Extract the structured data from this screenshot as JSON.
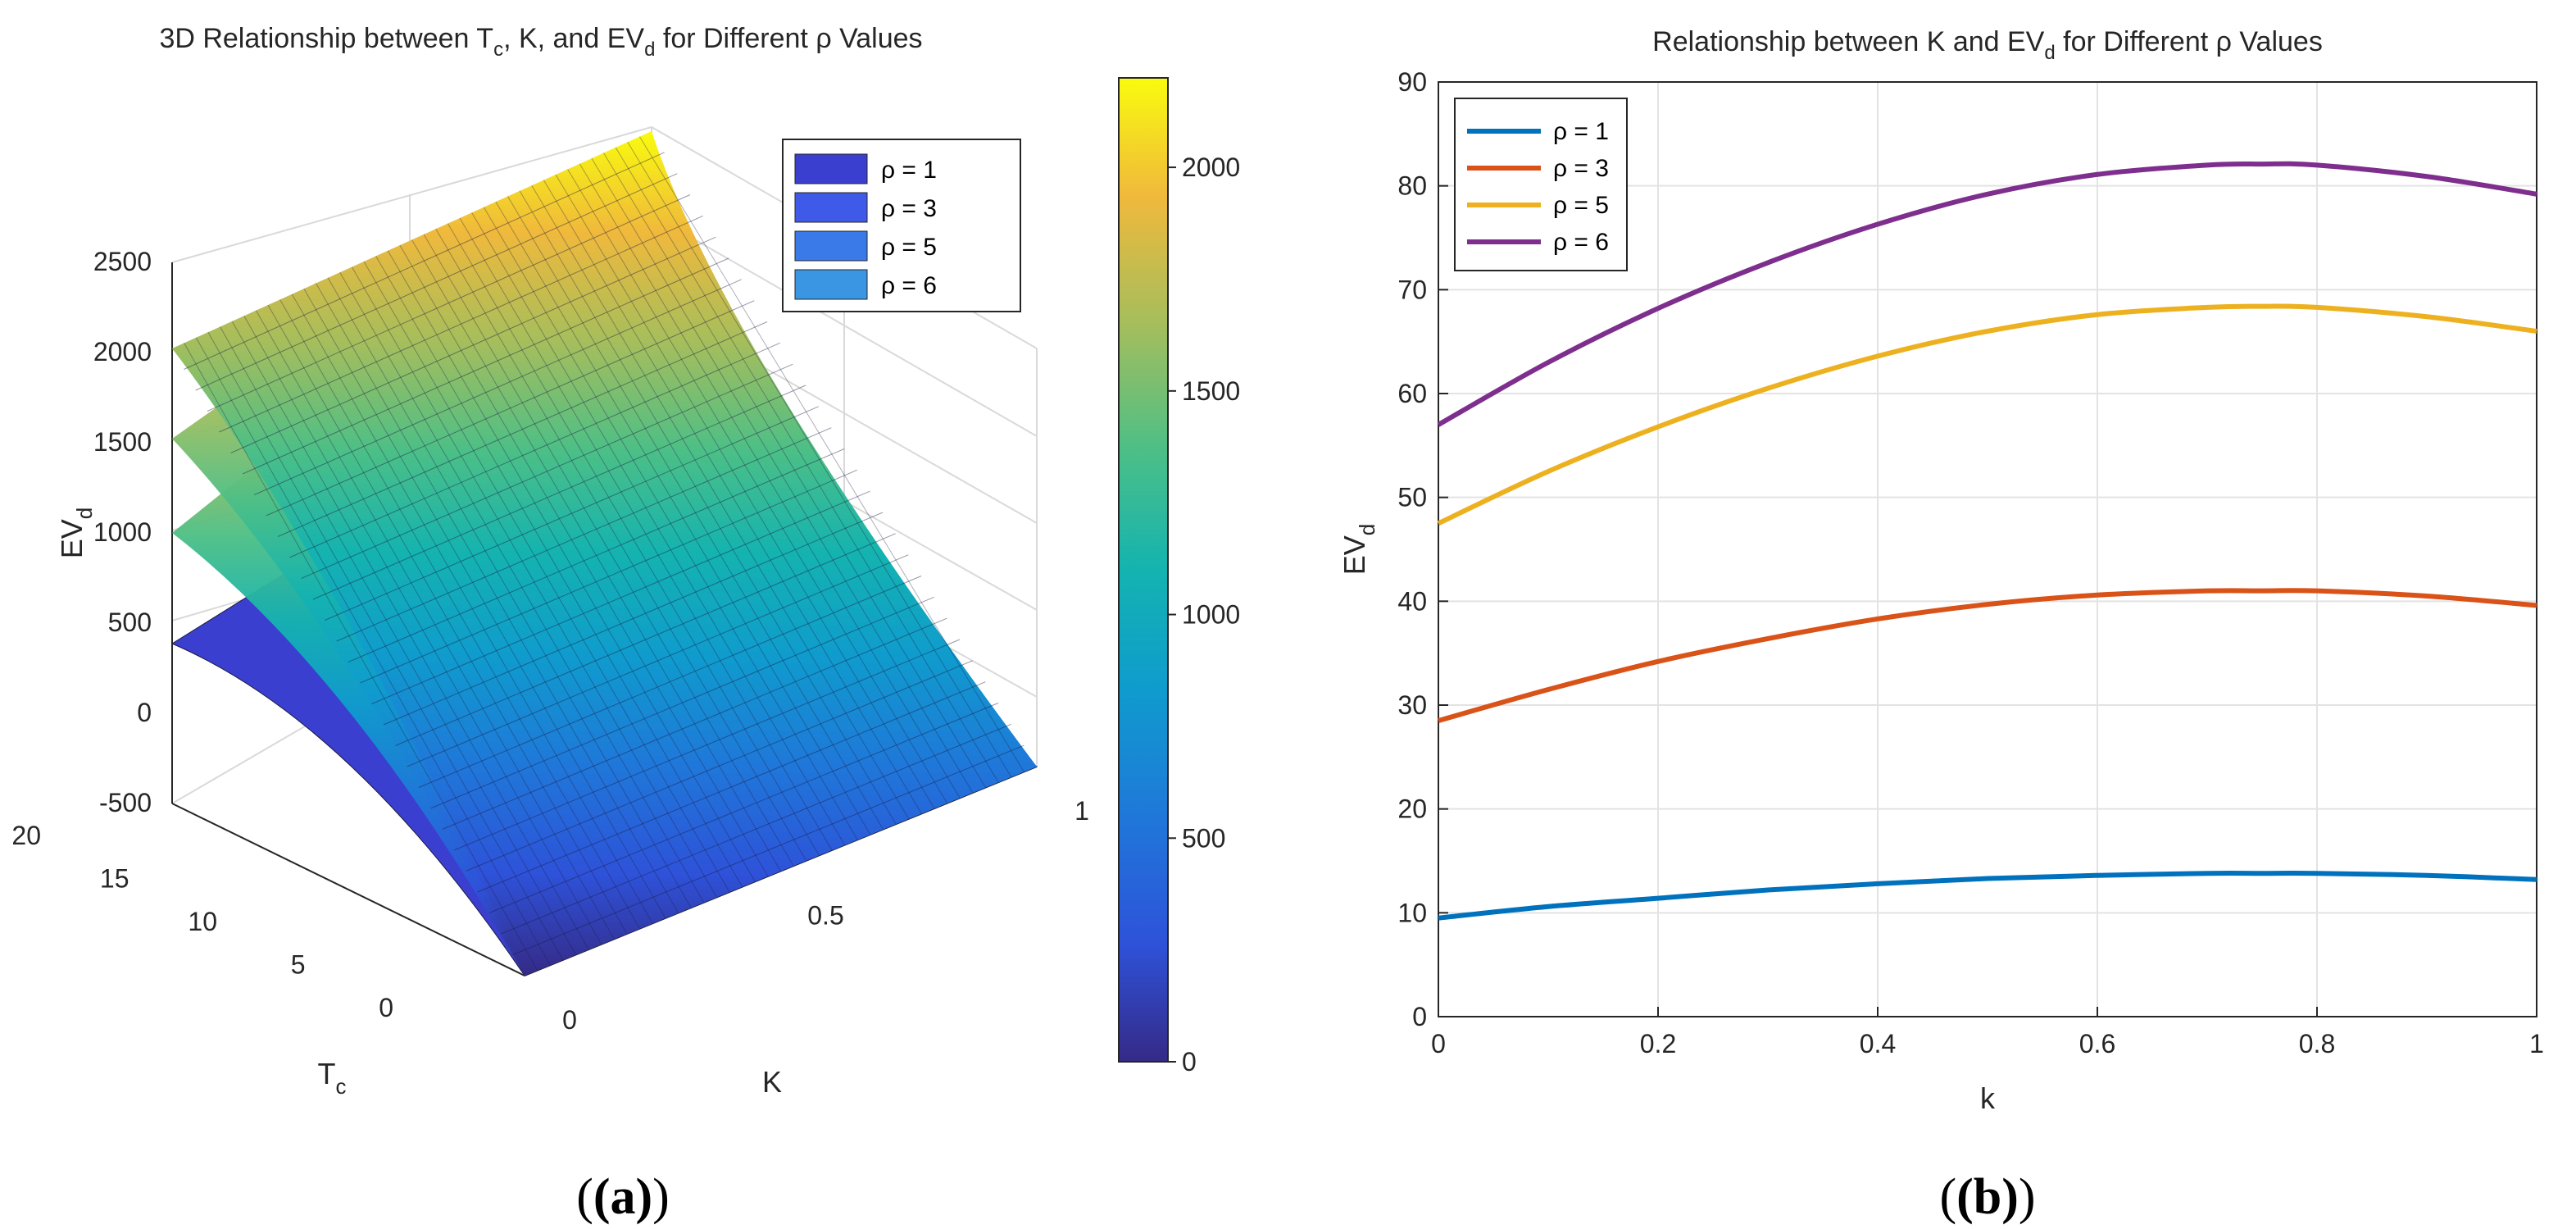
{
  "chart_data": [
    {
      "panel": "(a)",
      "type": "surface",
      "title": "3D Relationship between T_c, K, and EV_d for Different ρ Values",
      "title_parts": [
        "3D Relationship between T",
        "c",
        ", K, and EV",
        "d",
        " for Different ρ Values"
      ],
      "xlabel": "K",
      "ylabel_main": "T",
      "ylabel_sub": "c",
      "zlabel_main": "EV",
      "zlabel_sub": "d",
      "xlim": [
        0,
        1
      ],
      "ylim": [
        0,
        20
      ],
      "zlim": [
        -500,
        2500
      ],
      "x_ticks": [
        "0",
        "0.5",
        "1"
      ],
      "y_ticks": [
        "0",
        "5",
        "10",
        "15",
        "20"
      ],
      "z_ticks": [
        "-500",
        "0",
        "500",
        "1000",
        "1500",
        "2000",
        "2500"
      ],
      "series": [
        {
          "name": "ρ = 1",
          "rho": 1,
          "ev_at_K0_Tc20": 320
        },
        {
          "name": "ρ = 3",
          "rho": 3,
          "ev_at_K0_Tc20": 1000
        },
        {
          "name": "ρ = 5",
          "rho": 5,
          "ev_at_K0_Tc20": 1650
        },
        {
          "name": "ρ = 6",
          "rho": 6,
          "ev_at_K0_Tc20": 2000
        }
      ],
      "peak_value": 2200,
      "legend_location": "top-right",
      "legend_colors": [
        "#3a3fcf",
        "#3f5ae8",
        "#3a7ae8",
        "#3a96e3"
      ],
      "colorbar": {
        "ticks": [
          "0",
          "500",
          "1000",
          "1500",
          "2000"
        ],
        "range": [
          0,
          2200
        ]
      },
      "panel_label": "(a)"
    },
    {
      "panel": "(b)",
      "type": "line",
      "title": "Relationship between K and EV_d for Different ρ Values",
      "title_parts": [
        "Relationship between K and EV",
        "d",
        " for Different ρ Values"
      ],
      "xlabel": "k",
      "ylabel_main": "EV",
      "ylabel_sub": "d",
      "xlim": [
        0,
        1
      ],
      "ylim": [
        0,
        90
      ],
      "x_ticks": [
        "0",
        "0.2",
        "0.4",
        "0.6",
        "0.8",
        "1"
      ],
      "y_ticks": [
        "0",
        "10",
        "20",
        "30",
        "40",
        "50",
        "60",
        "70",
        "80",
        "90"
      ],
      "grid": true,
      "legend_location": "top-left",
      "x": [
        0,
        0.1,
        0.2,
        0.3,
        0.4,
        0.5,
        0.6,
        0.7,
        0.75,
        0.8,
        0.9,
        1.0
      ],
      "series": [
        {
          "name": "ρ = 1",
          "color": "#0072bd",
          "values": [
            9.5,
            10.6,
            11.4,
            12.2,
            12.8,
            13.3,
            13.6,
            13.8,
            13.8,
            13.8,
            13.6,
            13.2
          ]
        },
        {
          "name": "ρ = 3",
          "color": "#d95319",
          "values": [
            28.5,
            31.5,
            34.2,
            36.4,
            38.3,
            39.7,
            40.6,
            41.0,
            41.0,
            41.0,
            40.5,
            39.6
          ]
        },
        {
          "name": "ρ = 5",
          "color": "#edb120",
          "values": [
            47.5,
            52.5,
            56.8,
            60.5,
            63.6,
            66.0,
            67.6,
            68.3,
            68.4,
            68.3,
            67.4,
            66.0
          ]
        },
        {
          "name": "ρ = 6",
          "color": "#7e2f8e",
          "values": [
            57.0,
            63.0,
            68.2,
            72.6,
            76.3,
            79.2,
            81.1,
            82.0,
            82.1,
            82.0,
            80.9,
            79.2
          ]
        }
      ],
      "panel_label": "(b)"
    }
  ]
}
